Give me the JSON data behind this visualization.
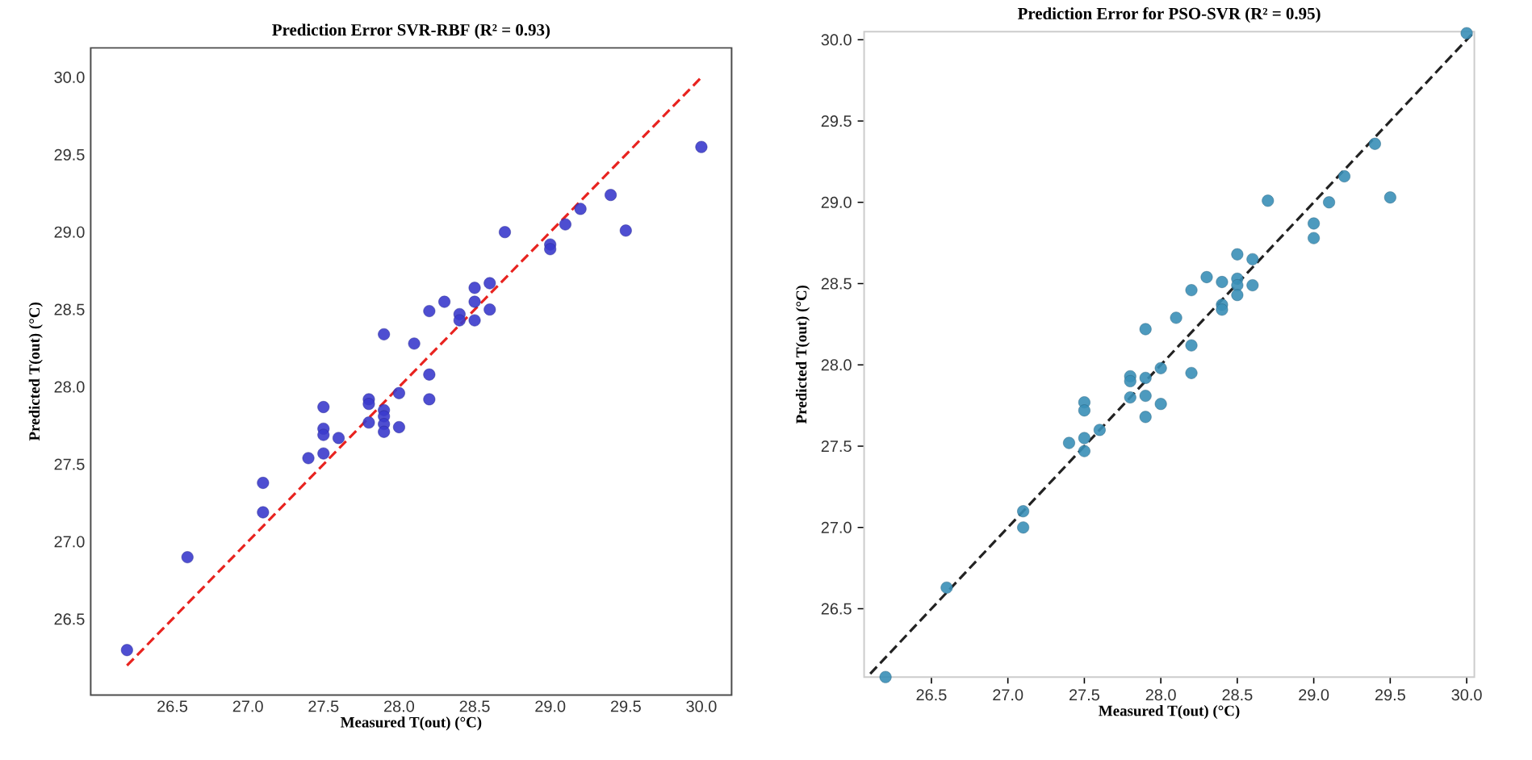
{
  "chart_data": [
    {
      "type": "scatter",
      "title": "Prediction Error SVR-RBF (R² = 0.93)",
      "xlabel": "Measured T(out) (°C)",
      "ylabel": "Predicted T(out) (°C)",
      "xlim": [
        25.96,
        30.2
      ],
      "ylim": [
        26.01,
        30.19
      ],
      "xticks": [
        {
          "value": 26.5,
          "label": "26.5"
        },
        {
          "value": 27,
          "label": "27.0"
        },
        {
          "value": 27.5,
          "label": "27.5"
        },
        {
          "value": 28,
          "label": "28.0"
        },
        {
          "value": 28.5,
          "label": "28.5"
        },
        {
          "value": 29,
          "label": "29.0"
        },
        {
          "value": 29.5,
          "label": "29.5"
        },
        {
          "value": 30,
          "label": "30.0"
        }
      ],
      "yticks": [
        {
          "value": 26.5,
          "label": "26.5"
        },
        {
          "value": 27,
          "label": "27.0"
        },
        {
          "value": 27.5,
          "label": "27.5"
        },
        {
          "value": 28,
          "label": "28.0"
        },
        {
          "value": 28.5,
          "label": "28.5"
        },
        {
          "value": 29,
          "label": "29.0"
        },
        {
          "value": 29.5,
          "label": "29.5"
        },
        {
          "value": 30,
          "label": "30.0"
        }
      ],
      "series": [
        {
          "marker": "circle",
          "color": "#3b3bcc",
          "x": [
            26.2,
            26.6,
            27.1,
            27.1,
            27.4,
            27.5,
            27.5,
            27.5,
            27.5,
            27.6,
            27.8,
            27.8,
            27.8,
            27.9,
            27.9,
            27.9,
            27.9,
            27.9,
            28.0,
            28.0,
            28.1,
            28.2,
            28.2,
            28.2,
            28.3,
            28.4,
            28.4,
            28.5,
            28.5,
            28.5,
            28.6,
            28.6,
            28.7,
            29.0,
            29.0,
            29.1,
            29.2,
            29.4,
            29.5,
            30.0
          ],
          "values": [
            26.3,
            26.9,
            27.38,
            27.19,
            27.54,
            27.87,
            27.73,
            27.69,
            27.57,
            27.67,
            27.92,
            27.89,
            27.77,
            27.85,
            27.81,
            27.76,
            27.71,
            28.34,
            27.96,
            27.74,
            28.28,
            28.49,
            28.08,
            27.92,
            28.55,
            28.47,
            28.43,
            28.64,
            28.55,
            28.43,
            28.67,
            28.5,
            29.0,
            28.92,
            28.89,
            29.05,
            29.15,
            29.24,
            29.01,
            29.55
          ]
        },
        {
          "type": "line",
          "color": "#e8231f",
          "line_style": "dashed",
          "marker": "none",
          "x": [
            26.2,
            30.0
          ],
          "values": [
            26.2,
            30.0
          ]
        }
      ]
    },
    {
      "type": "scatter",
      "title": "Prediction Error for PSO-SVR (R² = 0.95)",
      "xlabel": "Measured T(out) (°C)",
      "ylabel": "Predicted T(out) (°C)",
      "xlim": [
        26.06,
        30.05
      ],
      "ylim": [
        26.08,
        30.05
      ],
      "xticks": [
        {
          "value": 26.5,
          "label": "26.5"
        },
        {
          "value": 27,
          "label": "27.0"
        },
        {
          "value": 27.5,
          "label": "27.5"
        },
        {
          "value": 28,
          "label": "28.0"
        },
        {
          "value": 28.5,
          "label": "28.5"
        },
        {
          "value": 29,
          "label": "29.0"
        },
        {
          "value": 29.5,
          "label": "29.5"
        },
        {
          "value": 30,
          "label": "30.0"
        }
      ],
      "yticks": [
        {
          "value": 26.5,
          "label": "26.5"
        },
        {
          "value": 27,
          "label": "27.0"
        },
        {
          "value": 27.5,
          "label": "27.5"
        },
        {
          "value": 28,
          "label": "28.0"
        },
        {
          "value": 28.5,
          "label": "28.5"
        },
        {
          "value": 29,
          "label": "29.0"
        },
        {
          "value": 29.5,
          "label": "29.5"
        },
        {
          "value": 30,
          "label": "30.0"
        }
      ],
      "series": [
        {
          "marker": "circle",
          "color": "#3a8fb7",
          "x": [
            26.2,
            26.6,
            27.1,
            27.1,
            27.4,
            27.5,
            27.5,
            27.5,
            27.5,
            27.6,
            27.8,
            27.8,
            27.8,
            27.9,
            27.9,
            27.9,
            27.9,
            28.0,
            28.0,
            28.1,
            28.2,
            28.2,
            28.2,
            28.3,
            28.4,
            28.4,
            28.4,
            28.5,
            28.5,
            28.5,
            28.5,
            28.6,
            28.6,
            28.7,
            29.0,
            29.0,
            29.1,
            29.2,
            29.4,
            29.5,
            30.0
          ],
          "values": [
            26.08,
            26.63,
            27.1,
            27.0,
            27.52,
            27.77,
            27.72,
            27.55,
            27.47,
            27.6,
            27.93,
            27.9,
            27.8,
            27.92,
            27.81,
            27.68,
            28.22,
            27.98,
            27.76,
            28.29,
            28.46,
            28.12,
            27.95,
            28.54,
            28.51,
            28.37,
            28.34,
            28.68,
            28.53,
            28.49,
            28.43,
            28.65,
            28.49,
            29.01,
            28.87,
            28.78,
            29.0,
            29.16,
            29.36,
            29.03,
            30.04
          ]
        },
        {
          "type": "line",
          "color": "#222222",
          "line_style": "dashed",
          "marker": "none",
          "x": [
            26.1,
            30.05
          ],
          "values": [
            26.1,
            30.05
          ]
        }
      ]
    }
  ]
}
